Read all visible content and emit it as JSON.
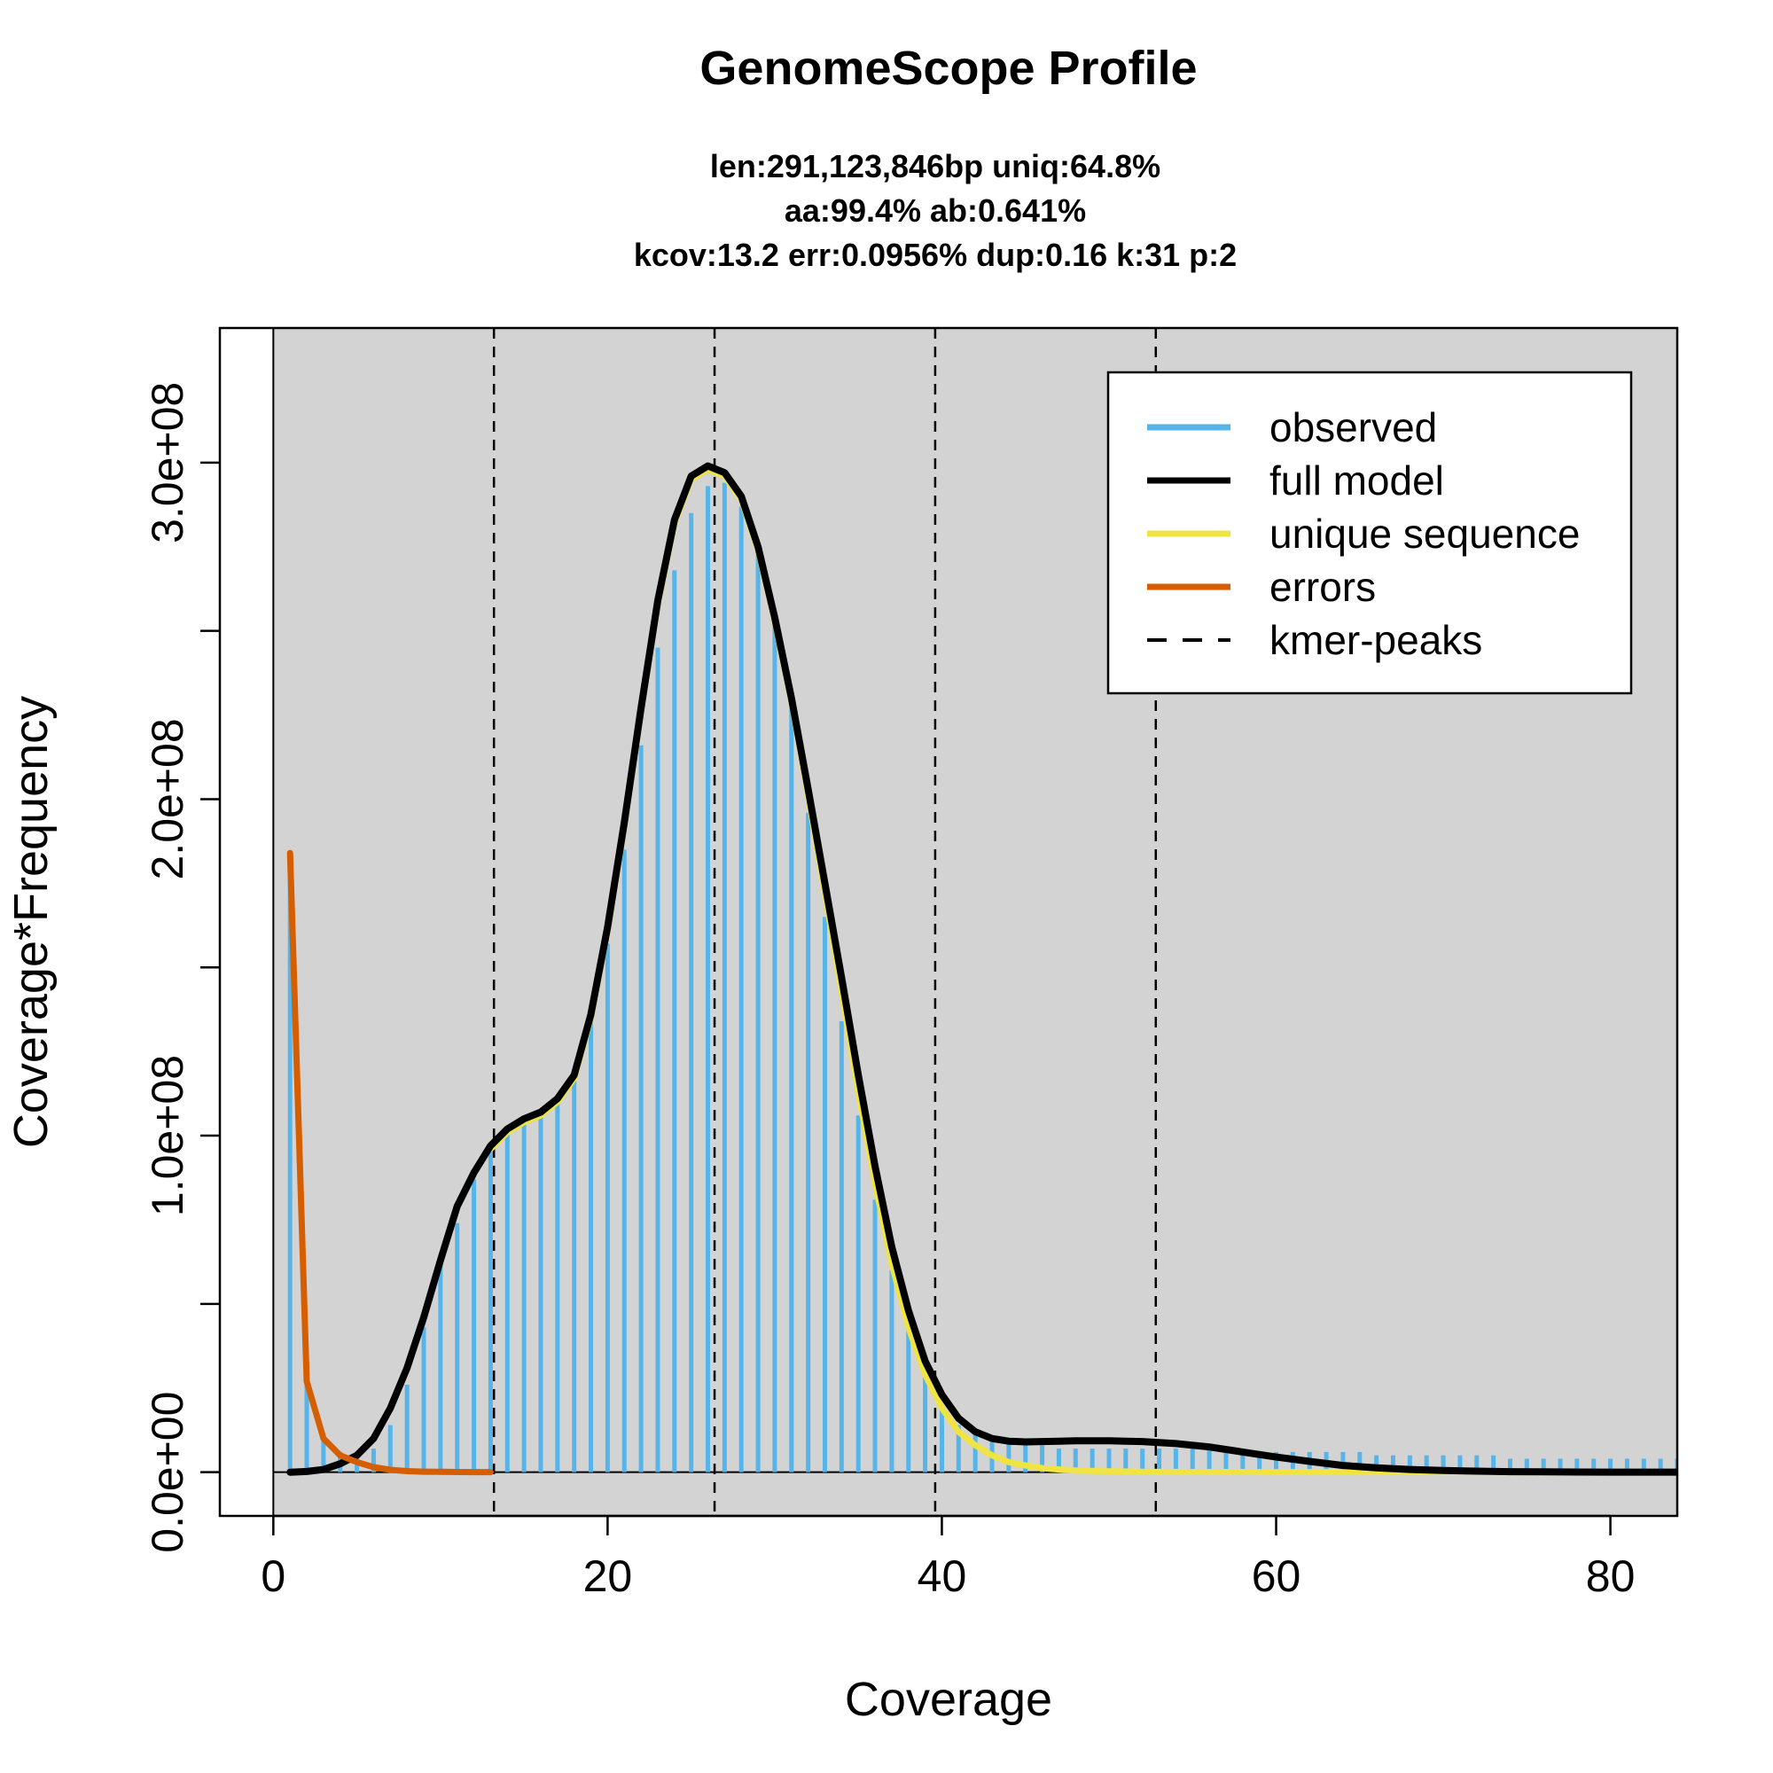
{
  "chart_data": {
    "type": "line",
    "title": "GenomeScope Profile",
    "subtitle_lines": [
      "len:291,123,846bp uniq:64.8%",
      "aa:99.4% ab:0.641%",
      "kcov:13.2 err:0.0956%  dup:0.16  k:31 p:2"
    ],
    "xlabel": "Coverage",
    "ylabel": "Coverage*Frequency",
    "xlim": [
      -3.2,
      84
    ],
    "ylim": [
      -13000000,
      340000000
    ],
    "x_ticks": [
      0,
      20,
      40,
      60,
      80
    ],
    "x_tick_labels": [
      "0",
      "20",
      "40",
      "60",
      "80"
    ],
    "y_ticks": [
      0,
      50000000,
      100000000,
      150000000,
      200000000,
      250000000,
      300000000
    ],
    "y_tick_labels": [
      "0.0e+00",
      "",
      "1.0e+08",
      "",
      "2.0e+08",
      "",
      "3.0e+08"
    ],
    "plot_background": "#d3d3d3",
    "legend_position": "top-right",
    "legend": [
      {
        "label": "observed",
        "color": "#56b4e9",
        "style": "solid"
      },
      {
        "label": "full model",
        "color": "#000000",
        "style": "solid"
      },
      {
        "label": "unique sequence",
        "color": "#f0e442",
        "style": "solid"
      },
      {
        "label": "errors",
        "color": "#d55e00",
        "style": "solid"
      },
      {
        "label": "kmer-peaks",
        "color": "#000000",
        "style": "dashed"
      }
    ],
    "kmer_peaks": [
      13.2,
      26.4,
      39.6,
      52.8
    ],
    "observed": {
      "name": "observed",
      "x_start": 1,
      "values": [
        184000000,
        27000000,
        10000000,
        6000000,
        6000000,
        7000000,
        14000000,
        26000000,
        43000000,
        62000000,
        74000000,
        87000000,
        96000000,
        101000000,
        105000000,
        107000000,
        111000000,
        119000000,
        135000000,
        157000000,
        185000000,
        216000000,
        245000000,
        268000000,
        285000000,
        293000000,
        294000000,
        287000000,
        274000000,
        253000000,
        227000000,
        196000000,
        165000000,
        134000000,
        106000000,
        81000000,
        60000000,
        42000000,
        29000000,
        20000000,
        14000000,
        11000000,
        9000000,
        9000000,
        8000000,
        8000000,
        7000000,
        7000000,
        7000000,
        7000000,
        7000000,
        7000000,
        7000000,
        7000000,
        7000000,
        7000000,
        7000000,
        7000000,
        6000000,
        6000000,
        6000000,
        6000000,
        6000000,
        6000000,
        6000000,
        5000000,
        5000000,
        5000000,
        5000000,
        5000000,
        5000000,
        5000000,
        5000000,
        4000000,
        4000000,
        4000000,
        4000000,
        4000000,
        4000000,
        4000000,
        4000000,
        4000000,
        4000000,
        4000000
      ]
    },
    "full_model": {
      "name": "full model",
      "x": [
        1,
        2,
        3,
        4,
        5,
        6,
        7,
        8,
        9,
        10,
        11,
        12,
        13,
        14,
        15,
        16,
        17,
        18,
        19,
        20,
        21,
        22,
        23,
        24,
        25,
        26,
        27,
        28,
        29,
        30,
        31,
        32,
        33,
        34,
        35,
        36,
        37,
        38,
        39,
        40,
        41,
        42,
        43,
        44,
        45,
        46,
        47,
        48,
        50,
        52,
        54,
        56,
        58,
        60,
        62,
        64,
        66,
        68,
        70,
        72,
        74,
        76,
        78,
        80,
        82,
        84
      ],
      "y": [
        0,
        200000,
        800000,
        2500000,
        5000000,
        10000000,
        19000000,
        31000000,
        46000000,
        63000000,
        79000000,
        89000000,
        97000000,
        102000000,
        105000000,
        107000000,
        111000000,
        118000000,
        136000000,
        162000000,
        193000000,
        227000000,
        259000000,
        283000000,
        296000000,
        299000000,
        297000000,
        290000000,
        275000000,
        254000000,
        230000000,
        203000000,
        175000000,
        147000000,
        118000000,
        91000000,
        67000000,
        48000000,
        33000000,
        23000000,
        16000000,
        12000000,
        10000000,
        9200000,
        9000000,
        9100000,
        9200000,
        9300000,
        9300000,
        9100000,
        8500000,
        7500000,
        6000000,
        4500000,
        3200000,
        2000000,
        1300000,
        800000,
        500000,
        300000,
        150000,
        80000,
        40000,
        20000,
        10000,
        5000
      ]
    },
    "unique_sequence": {
      "name": "unique sequence",
      "x": [
        13,
        14,
        15,
        16,
        17,
        18,
        19,
        20,
        21,
        22,
        23,
        24,
        25,
        26,
        27,
        28,
        29,
        30,
        31,
        32,
        33,
        34,
        35,
        36,
        37,
        38,
        39,
        40,
        41,
        42,
        43,
        44,
        45,
        46,
        47,
        48,
        50,
        52,
        55,
        60,
        65,
        70,
        75,
        80,
        84
      ],
      "y": [
        96000000,
        101000000,
        104000000,
        106000000,
        110000000,
        117000000,
        135000000,
        161000000,
        192000000,
        226000000,
        258000000,
        282000000,
        295000000,
        298000000,
        296000000,
        289000000,
        274000000,
        253000000,
        229000000,
        201000000,
        172000000,
        143000000,
        113000000,
        86000000,
        62000000,
        43000000,
        29000000,
        19000000,
        12000000,
        8000000,
        5000000,
        3000000,
        2000000,
        1200000,
        800000,
        500000,
        250000,
        120000,
        50000,
        20000,
        8000,
        3000,
        1000,
        500,
        200
      ]
    },
    "errors": {
      "name": "errors",
      "x": [
        1,
        2,
        3,
        4,
        5,
        6,
        7,
        8,
        9,
        10,
        11,
        12,
        13
      ],
      "y": [
        184000000,
        27000000,
        10000000,
        5000000,
        3000000,
        1500000,
        700000,
        300000,
        150000,
        80000,
        40000,
        20000,
        10000
      ]
    }
  }
}
